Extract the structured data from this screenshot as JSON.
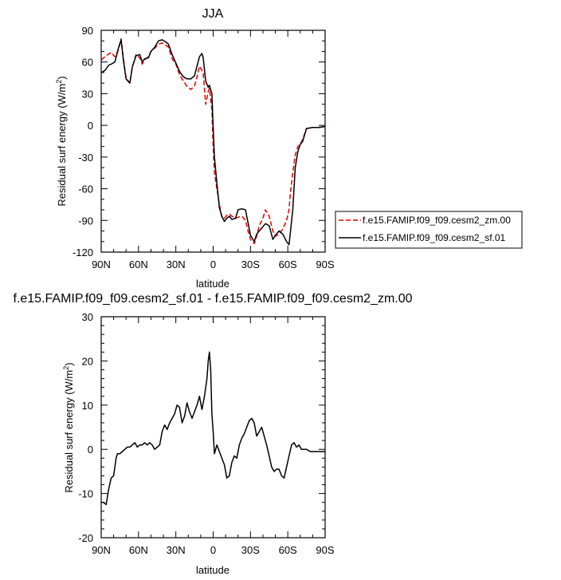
{
  "chart_data": [
    {
      "type": "line",
      "title": "JJA",
      "ylabel_main": "Residual surf energy (W/m",
      "ylabel_sup": "2",
      "ylabel_tail": ")",
      "xlabel": "latitude",
      "xlim": [
        90,
        -90
      ],
      "ylim": [
        -120,
        90
      ],
      "x_ticks": [
        90,
        60,
        30,
        0,
        -30,
        -60,
        -90
      ],
      "x_tick_labels": [
        "90N",
        "60N",
        "30N",
        "0",
        "30S",
        "60S",
        "90S"
      ],
      "y_ticks": [
        -120,
        -90,
        -60,
        -30,
        0,
        30,
        60,
        90
      ],
      "y_tick_labels": [
        "-120",
        "-90",
        "-60",
        "-30",
        "0",
        "30",
        "60",
        "90"
      ],
      "legend_position": "right",
      "series": [
        {
          "name": "f.e15.FAMIP.f09_f09.cesm2_zm.00",
          "color": "#e00000",
          "dash": "dashed",
          "x": [
            90,
            86,
            82,
            79,
            76,
            74,
            72,
            70,
            67,
            65,
            62,
            59,
            57,
            55,
            52,
            50,
            47,
            44,
            41,
            38,
            36,
            33,
            30,
            27,
            24,
            21,
            18,
            15,
            13,
            11,
            8,
            6,
            4,
            3,
            1,
            0,
            -1,
            -3,
            -5,
            -7,
            -9,
            -11,
            -13,
            -15,
            -18,
            -20,
            -23,
            -26,
            -28,
            -30,
            -33,
            -35,
            -37,
            -40,
            -42,
            -45,
            -48,
            -50,
            -53,
            -56,
            -59,
            -61,
            -62,
            -64,
            -66,
            -68,
            -70,
            -72,
            -75,
            -80,
            -85,
            -90
          ],
          "y": [
            62,
            66,
            69,
            65,
            72,
            82,
            62,
            45,
            40,
            55,
            67,
            64,
            58,
            62,
            65,
            70,
            73,
            77,
            78,
            76,
            74,
            63,
            58,
            48,
            42,
            37,
            34,
            37,
            46,
            56,
            50,
            20,
            32,
            35,
            15,
            -20,
            -45,
            -60,
            -75,
            -87,
            -88,
            -85,
            -84,
            -86,
            -88,
            -87,
            -86,
            -90,
            -100,
            -108,
            -112,
            -105,
            -95,
            -88,
            -80,
            -86,
            -100,
            -105,
            -103,
            -98,
            -90,
            -80,
            -65,
            -45,
            -28,
            -20,
            -18,
            -13,
            -3,
            -2,
            -2,
            -1
          ]
        },
        {
          "name": "f.e15.FAMIP.f09_f09.cesm2_sf.01",
          "color": "#000000",
          "dash": "solid",
          "x": [
            90,
            87,
            84,
            82,
            79,
            76,
            74,
            72,
            70,
            67,
            65,
            62,
            59,
            57,
            55,
            52,
            50,
            47,
            44,
            41,
            38,
            36,
            33,
            30,
            27,
            24,
            21,
            18,
            15,
            13,
            11,
            9,
            8,
            6,
            4,
            3,
            1,
            0,
            -1,
            -3,
            -5,
            -7,
            -9,
            -11,
            -13,
            -15,
            -18,
            -20,
            -23,
            -26,
            -28,
            -30,
            -33,
            -35,
            -37,
            -40,
            -42,
            -45,
            -48,
            -50,
            -53,
            -56,
            -59,
            -61,
            -62,
            -64,
            -66,
            -68,
            -70,
            -72,
            -75,
            -80,
            -85,
            -90
          ],
          "y": [
            50,
            52,
            57,
            58,
            60,
            74,
            81,
            60,
            44,
            40,
            55,
            66,
            67,
            60,
            63,
            64,
            70,
            74,
            80,
            81,
            79,
            77,
            67,
            59,
            51,
            46,
            44,
            44,
            47,
            56,
            65,
            68,
            64,
            42,
            36,
            38,
            30,
            -2,
            -30,
            -55,
            -78,
            -86,
            -91,
            -88,
            -86,
            -89,
            -88,
            -80,
            -79,
            -80,
            -92,
            -104,
            -110,
            -103,
            -100,
            -96,
            -93,
            -95,
            -108,
            -104,
            -100,
            -103,
            -110,
            -113,
            -102,
            -80,
            -40,
            -25,
            -18,
            -15,
            -3,
            -2,
            -2,
            -1
          ]
        }
      ]
    },
    {
      "type": "line",
      "title": "f.e15.FAMIP.f09_f09.cesm2_sf.01 - f.e15.FAMIP.f09_f09.cesm2_zm.00",
      "ylabel_main": "Residual surf energy (W/m",
      "ylabel_sup": "2",
      "ylabel_tail": ")",
      "xlabel": "latitude",
      "xlim": [
        90,
        -90
      ],
      "ylim": [
        -20,
        30
      ],
      "x_ticks": [
        90,
        60,
        30,
        0,
        -30,
        -60,
        -90
      ],
      "x_tick_labels": [
        "90N",
        "60N",
        "30N",
        "0",
        "30S",
        "60S",
        "90S"
      ],
      "y_ticks": [
        -20,
        -10,
        0,
        10,
        20,
        30
      ],
      "y_tick_labels": [
        "-20",
        "-10",
        "0",
        "10",
        "20",
        "30"
      ],
      "series": [
        {
          "color": "#000000",
          "dash": "solid",
          "x": [
            90,
            88,
            86,
            84,
            82,
            80,
            78,
            77,
            75,
            73,
            71,
            69,
            67,
            65,
            63,
            61,
            59,
            57,
            55,
            53,
            51,
            49,
            47,
            45,
            43,
            41,
            39,
            37,
            35,
            33,
            31,
            29,
            27,
            25,
            23,
            21,
            19,
            17,
            15,
            13,
            11,
            9,
            7,
            5,
            4,
            3,
            2,
            1,
            0,
            -1,
            -3,
            -5,
            -7,
            -9,
            -11,
            -13,
            -15,
            -17,
            -19,
            -21,
            -23,
            -25,
            -27,
            -29,
            -31,
            -33,
            -35,
            -37,
            -39,
            -41,
            -43,
            -45,
            -47,
            -49,
            -51,
            -53,
            -55,
            -57,
            -59,
            -61,
            -63,
            -65,
            -67,
            -69,
            -71,
            -73,
            -75,
            -78,
            -81,
            -85,
            -88,
            -90
          ],
          "y": [
            -12,
            -12,
            -12.5,
            -9,
            -6.5,
            -6,
            -2,
            -1,
            -1,
            -0.5,
            0,
            0.5,
            0.5,
            1,
            1.5,
            0.5,
            1,
            1,
            1.5,
            1,
            1.5,
            1,
            0,
            0.5,
            1,
            4,
            5.5,
            4.5,
            6,
            7,
            8,
            10,
            9.5,
            6,
            7.5,
            10.5,
            8.5,
            7,
            8.5,
            10,
            12,
            9,
            12,
            16,
            20,
            22,
            18,
            8,
            4,
            -1,
            1,
            -0.5,
            -2,
            -3.5,
            -6.5,
            -6,
            -3,
            -1.5,
            -2,
            1,
            2.5,
            3.5,
            5,
            6.5,
            7,
            6,
            3,
            4,
            5,
            3,
            1,
            -1.5,
            -4,
            -5,
            -4.5,
            -4.5,
            -6,
            -6.5,
            -4,
            -1.5,
            1,
            1.5,
            0.5,
            1,
            0,
            0,
            0,
            -0.5,
            -0.5,
            -0.5,
            -0.5,
            -0.5
          ]
        }
      ]
    }
  ]
}
